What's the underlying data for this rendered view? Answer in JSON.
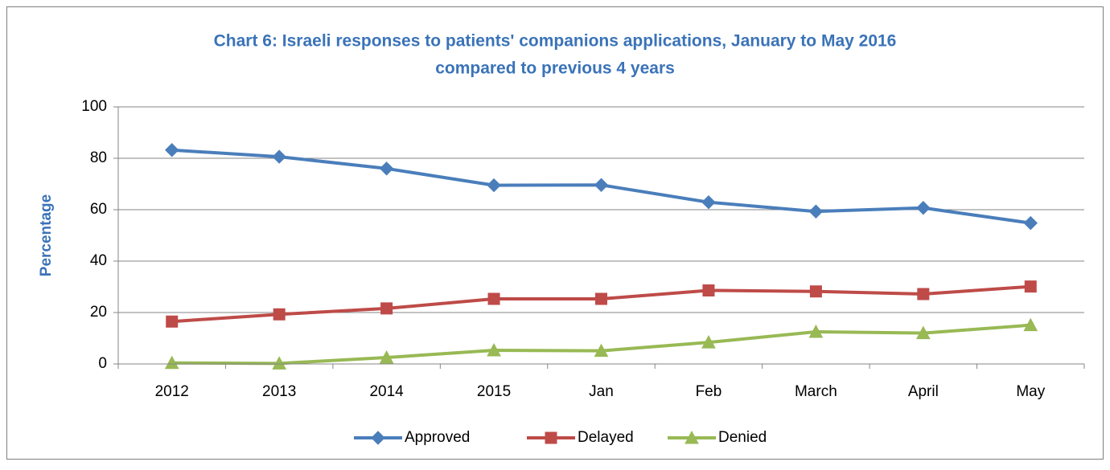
{
  "chart_data": {
    "type": "line",
    "title": [
      "Chart 6: Israeli responses to patients' companions applications, January to May 2016",
      "compared to previous 4 years"
    ],
    "y_label": "Percentage",
    "categories": [
      "2012",
      "2013",
      "2014",
      "2015",
      "Jan",
      "Feb",
      "March",
      "April",
      "May"
    ],
    "series": [
      {
        "name": "Approved",
        "color": "#4a7ebb",
        "marker": "diamond",
        "values": [
          83.2,
          80.6,
          76,
          69.5,
          69.6,
          62.9,
          59.3,
          60.7,
          54.8
        ]
      },
      {
        "name": "Delayed",
        "color": "#be4b48",
        "marker": "square",
        "values": [
          16.5,
          19.3,
          21.6,
          25.3,
          25.3,
          28.6,
          28.2,
          27.2,
          30.1
        ]
      },
      {
        "name": "Denied",
        "color": "#98b954",
        "marker": "triangle",
        "values": [
          0.4,
          0.2,
          2.5,
          5.3,
          5.1,
          8.4,
          12.5,
          12,
          15.1
        ]
      }
    ],
    "ylim": [
      0,
      100
    ],
    "yticks": [
      0,
      20,
      40,
      60,
      80,
      100
    ],
    "grid": true,
    "legend": "bottom"
  }
}
